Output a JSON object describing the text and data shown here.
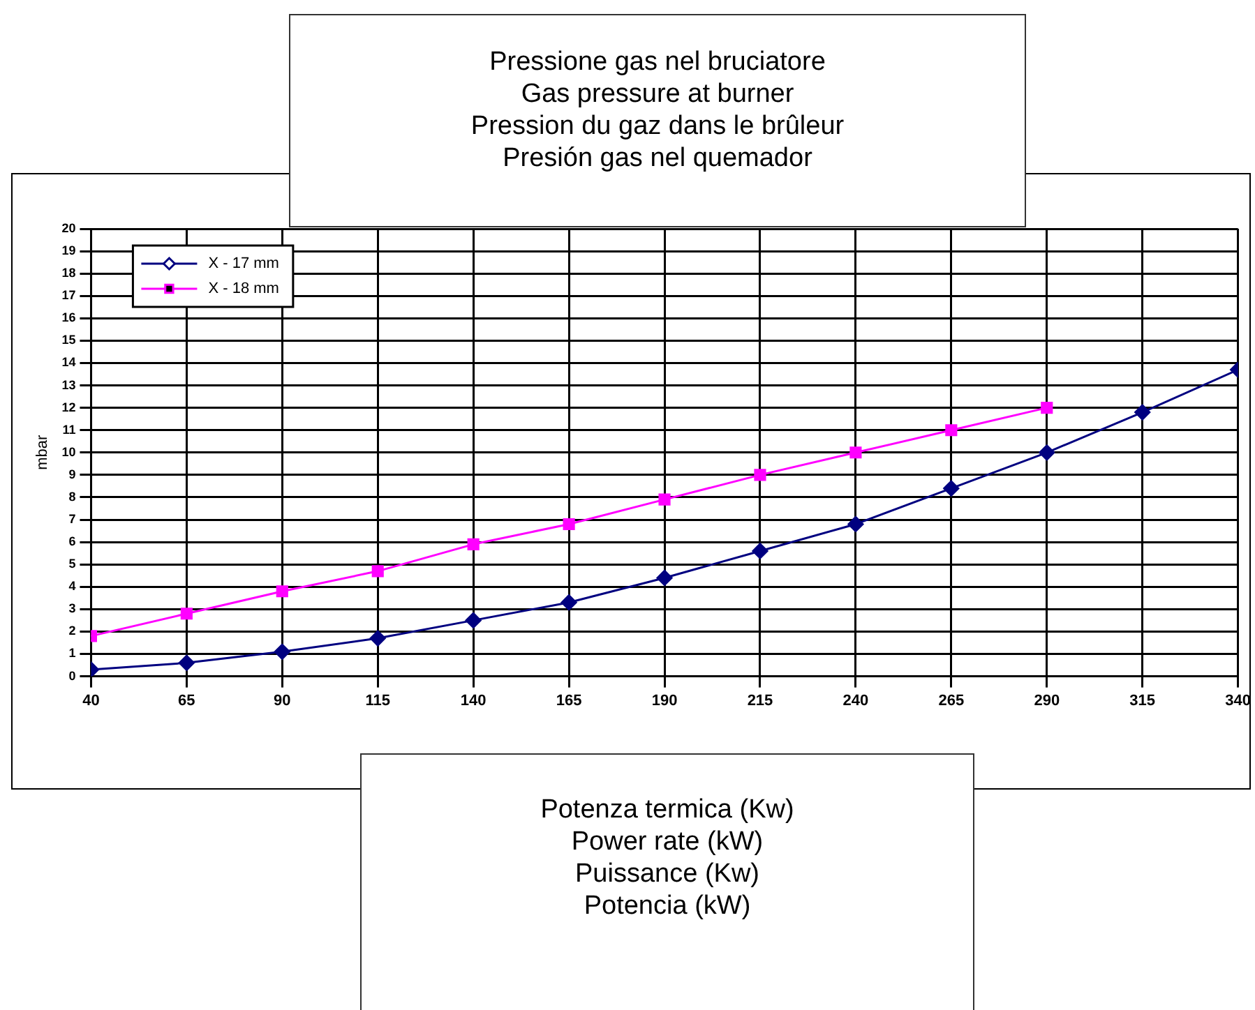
{
  "chart_data": {
    "type": "line",
    "title": "Pressione gas nel bruciatore\nGas pressure at burner\nPression du gaz dans le brûleur\nPresión gas nel quemador",
    "xlabel": "Potenza termica (Kw)\nPower rate (kW)\nPuissance (Kw)\nPotencia (kW)",
    "ylabel": "mbar",
    "x": [
      40,
      65,
      90,
      115,
      140,
      165,
      190,
      215,
      240,
      265,
      290,
      315,
      340
    ],
    "series": [
      {
        "name": "X - 17 mm",
        "color": "#000080",
        "marker": "diamond",
        "values": [
          0.3,
          0.6,
          1.1,
          1.7,
          2.5,
          3.3,
          4.4,
          5.6,
          6.8,
          8.4,
          10.0,
          11.8,
          13.7
        ]
      },
      {
        "name": "X - 18 mm",
        "color": "#ff00ff",
        "marker": "square",
        "values": [
          1.8,
          2.8,
          3.8,
          4.7,
          5.9,
          6.8,
          7.9,
          9.0,
          10.0,
          11.0,
          12.0,
          null,
          null
        ]
      }
    ],
    "xlim": [
      40,
      340
    ],
    "xticks": [
      40,
      65,
      90,
      115,
      140,
      165,
      190,
      215,
      240,
      265,
      290,
      315,
      340
    ],
    "ylim": [
      0,
      20
    ],
    "yticks": [
      0,
      1,
      2,
      3,
      4,
      5,
      6,
      7,
      8,
      9,
      10,
      11,
      12,
      13,
      14,
      15,
      16,
      17,
      18,
      19,
      20
    ],
    "grid": true,
    "legend": "top left",
    "line_style": "solid"
  }
}
